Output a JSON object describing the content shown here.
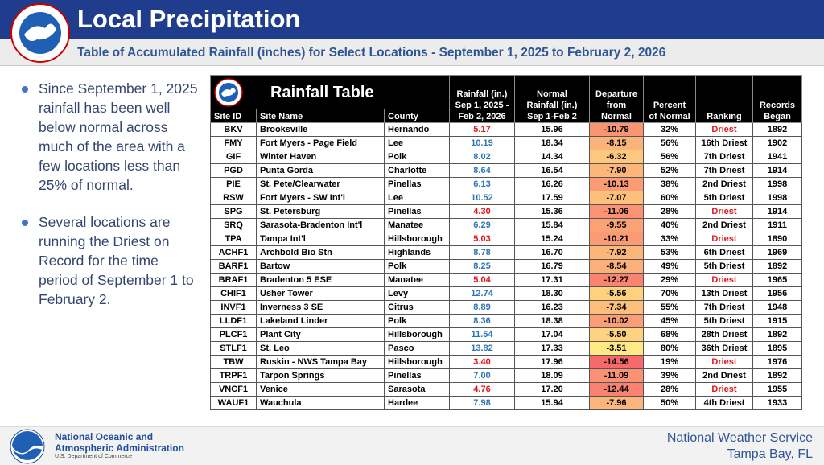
{
  "header": {
    "title": "Local Precipitation",
    "subtitle": "Table of Accumulated Rainfall (inches) for Select Locations - September 1, 2025 to February 2, 2026"
  },
  "bullets": [
    "Since September 1, 2025 rainfall has been well below normal across much of the area with a few locations less than 25% of normal.",
    "Several locations are running the Driest on Record for the time period of September 1 to February 2."
  ],
  "table": {
    "title": "Rainfall Table",
    "columns": [
      [
        "Site ID"
      ],
      [
        "Site Name"
      ],
      [
        "County"
      ],
      [
        "Rainfall (in.)",
        "Sep 1, 2025 -",
        "Feb 2, 2026"
      ],
      [
        "Normal",
        "Rainfall (in.)",
        "Sep 1-Feb 2"
      ],
      [
        "Departure",
        "from",
        "Normal"
      ],
      [
        "Percent",
        "of Normal"
      ],
      [
        "Ranking"
      ],
      [
        "Records",
        "Began"
      ]
    ],
    "departure_colors": [
      "#f8696b",
      "#ffe984"
    ],
    "rows": [
      {
        "id": "BKV",
        "name": "Brooksville",
        "county": "Hernando",
        "rainfall": "5.17",
        "normal": "15.96",
        "departure": "-10.79",
        "percent": "32%",
        "ranking": "Driest",
        "began": "1892",
        "rain_color": "#e3141b",
        "rank_color": "#e3141b"
      },
      {
        "id": "FMY",
        "name": "Fort Myers - Page Field",
        "county": "Lee",
        "rainfall": "10.19",
        "normal": "18.34",
        "departure": "-8.15",
        "percent": "56%",
        "ranking": "16th Driest",
        "began": "1902",
        "rain_color": "#2e75b6",
        "rank_color": "#000000"
      },
      {
        "id": "GIF",
        "name": "Winter Haven",
        "county": "Polk",
        "rainfall": "8.02",
        "normal": "14.34",
        "departure": "-6.32",
        "percent": "56%",
        "ranking": "7th Driest",
        "began": "1941",
        "rain_color": "#2e75b6",
        "rank_color": "#000000"
      },
      {
        "id": "PGD",
        "name": "Punta Gorda",
        "county": "Charlotte",
        "rainfall": "8.64",
        "normal": "16.54",
        "departure": "-7.90",
        "percent": "52%",
        "ranking": "7th Driest",
        "began": "1914",
        "rain_color": "#2e75b6",
        "rank_color": "#000000"
      },
      {
        "id": "PIE",
        "name": "St. Pete/Clearwater",
        "county": "Pinellas",
        "rainfall": "6.13",
        "normal": "16.26",
        "departure": "-10.13",
        "percent": "38%",
        "ranking": "2nd Driest",
        "began": "1998",
        "rain_color": "#2e75b6",
        "rank_color": "#000000"
      },
      {
        "id": "RSW",
        "name": "Fort Myers - SW Int'l",
        "county": "Lee",
        "rainfall": "10.52",
        "normal": "17.59",
        "departure": "-7.07",
        "percent": "60%",
        "ranking": "5th Driest",
        "began": "1998",
        "rain_color": "#2e75b6",
        "rank_color": "#000000"
      },
      {
        "id": "SPG",
        "name": "St. Petersburg",
        "county": "Pinellas",
        "rainfall": "4.30",
        "normal": "15.36",
        "departure": "-11.06",
        "percent": "28%",
        "ranking": "Driest",
        "began": "1914",
        "rain_color": "#e3141b",
        "rank_color": "#e3141b"
      },
      {
        "id": "SRQ",
        "name": "Sarasota-Bradenton Int'l",
        "county": "Manatee",
        "rainfall": "6.29",
        "normal": "15.84",
        "departure": "-9.55",
        "percent": "40%",
        "ranking": "2nd Driest",
        "began": "1911",
        "rain_color": "#2e75b6",
        "rank_color": "#000000"
      },
      {
        "id": "TPA",
        "name": "Tampa Int'l",
        "county": "Hillsborough",
        "rainfall": "5.03",
        "normal": "15.24",
        "departure": "-10.21",
        "percent": "33%",
        "ranking": "Driest",
        "began": "1890",
        "rain_color": "#e3141b",
        "rank_color": "#e3141b"
      },
      {
        "id": "ACHF1",
        "name": "Archbold Bio Stn",
        "county": "Highlands",
        "rainfall": "8.78",
        "normal": "16.70",
        "departure": "-7.92",
        "percent": "53%",
        "ranking": "6th Driest",
        "began": "1969",
        "rain_color": "#2e75b6",
        "rank_color": "#000000"
      },
      {
        "id": "BARF1",
        "name": "Bartow",
        "county": "Polk",
        "rainfall": "8.25",
        "normal": "16.79",
        "departure": "-8.54",
        "percent": "49%",
        "ranking": "5th Driest",
        "began": "1892",
        "rain_color": "#2e75b6",
        "rank_color": "#000000"
      },
      {
        "id": "BRAF1",
        "name": "Bradenton 5 ESE",
        "county": "Manatee",
        "rainfall": "5.04",
        "normal": "17.31",
        "departure": "-12.27",
        "percent": "29%",
        "ranking": "Driest",
        "began": "1965",
        "rain_color": "#e3141b",
        "rank_color": "#e3141b"
      },
      {
        "id": "CHIF1",
        "name": "Usher Tower",
        "county": "Levy",
        "rainfall": "12.74",
        "normal": "18.30",
        "departure": "-5.56",
        "percent": "70%",
        "ranking": "13th Driest",
        "began": "1956",
        "rain_color": "#2e75b6",
        "rank_color": "#000000"
      },
      {
        "id": "INVF1",
        "name": "Inverness 3 SE",
        "county": "Citrus",
        "rainfall": "8.89",
        "normal": "16.23",
        "departure": "-7.34",
        "percent": "55%",
        "ranking": "7th Driest",
        "began": "1948",
        "rain_color": "#2e75b6",
        "rank_color": "#000000"
      },
      {
        "id": "LLDF1",
        "name": "Lakeland Linder",
        "county": "Polk",
        "rainfall": "8.36",
        "normal": "18.38",
        "departure": "-10.02",
        "percent": "45%",
        "ranking": "5th Driest",
        "began": "1915",
        "rain_color": "#2e75b6",
        "rank_color": "#000000"
      },
      {
        "id": "PLCF1",
        "name": "Plant City",
        "county": "Hillsborough",
        "rainfall": "11.54",
        "normal": "17.04",
        "departure": "-5.50",
        "percent": "68%",
        "ranking": "28th Driest",
        "began": "1892",
        "rain_color": "#2e75b6",
        "rank_color": "#000000"
      },
      {
        "id": "STLF1",
        "name": "St. Leo",
        "county": "Pasco",
        "rainfall": "13.82",
        "normal": "17.33",
        "departure": "-3.51",
        "percent": "80%",
        "ranking": "36th Driest",
        "began": "1895",
        "rain_color": "#2e75b6",
        "rank_color": "#000000"
      },
      {
        "id": "TBW",
        "name": "Ruskin - NWS Tampa Bay",
        "county": "Hillsborough",
        "rainfall": "3.40",
        "normal": "17.96",
        "departure": "-14.56",
        "percent": "19%",
        "ranking": "Driest",
        "began": "1976",
        "rain_color": "#e3141b",
        "rank_color": "#e3141b"
      },
      {
        "id": "TRPF1",
        "name": "Tarpon Springs",
        "county": "Pinellas",
        "rainfall": "7.00",
        "normal": "18.09",
        "departure": "-11.09",
        "percent": "39%",
        "ranking": "2nd Driest",
        "began": "1892",
        "rain_color": "#2e75b6",
        "rank_color": "#000000"
      },
      {
        "id": "VNCF1",
        "name": "Venice",
        "county": "Sarasota",
        "rainfall": "4.76",
        "normal": "17.20",
        "departure": "-12.44",
        "percent": "28%",
        "ranking": "Driest",
        "began": "1955",
        "rain_color": "#e3141b",
        "rank_color": "#e3141b"
      },
      {
        "id": "WAUF1",
        "name": "Wauchula",
        "county": "Hardee",
        "rainfall": "7.98",
        "normal": "15.94",
        "departure": "-7.96",
        "percent": "50%",
        "ranking": "4th Driest",
        "began": "1933",
        "rain_color": "#2e75b6",
        "rank_color": "#000000"
      }
    ]
  },
  "footer": {
    "org_line1": "National Oceanic and",
    "org_line2": "Atmospheric Administration",
    "org_sub": "U.S. Department of Commerce",
    "right_line1": "National Weather Service",
    "right_line2": "Tampa Bay, FL"
  }
}
